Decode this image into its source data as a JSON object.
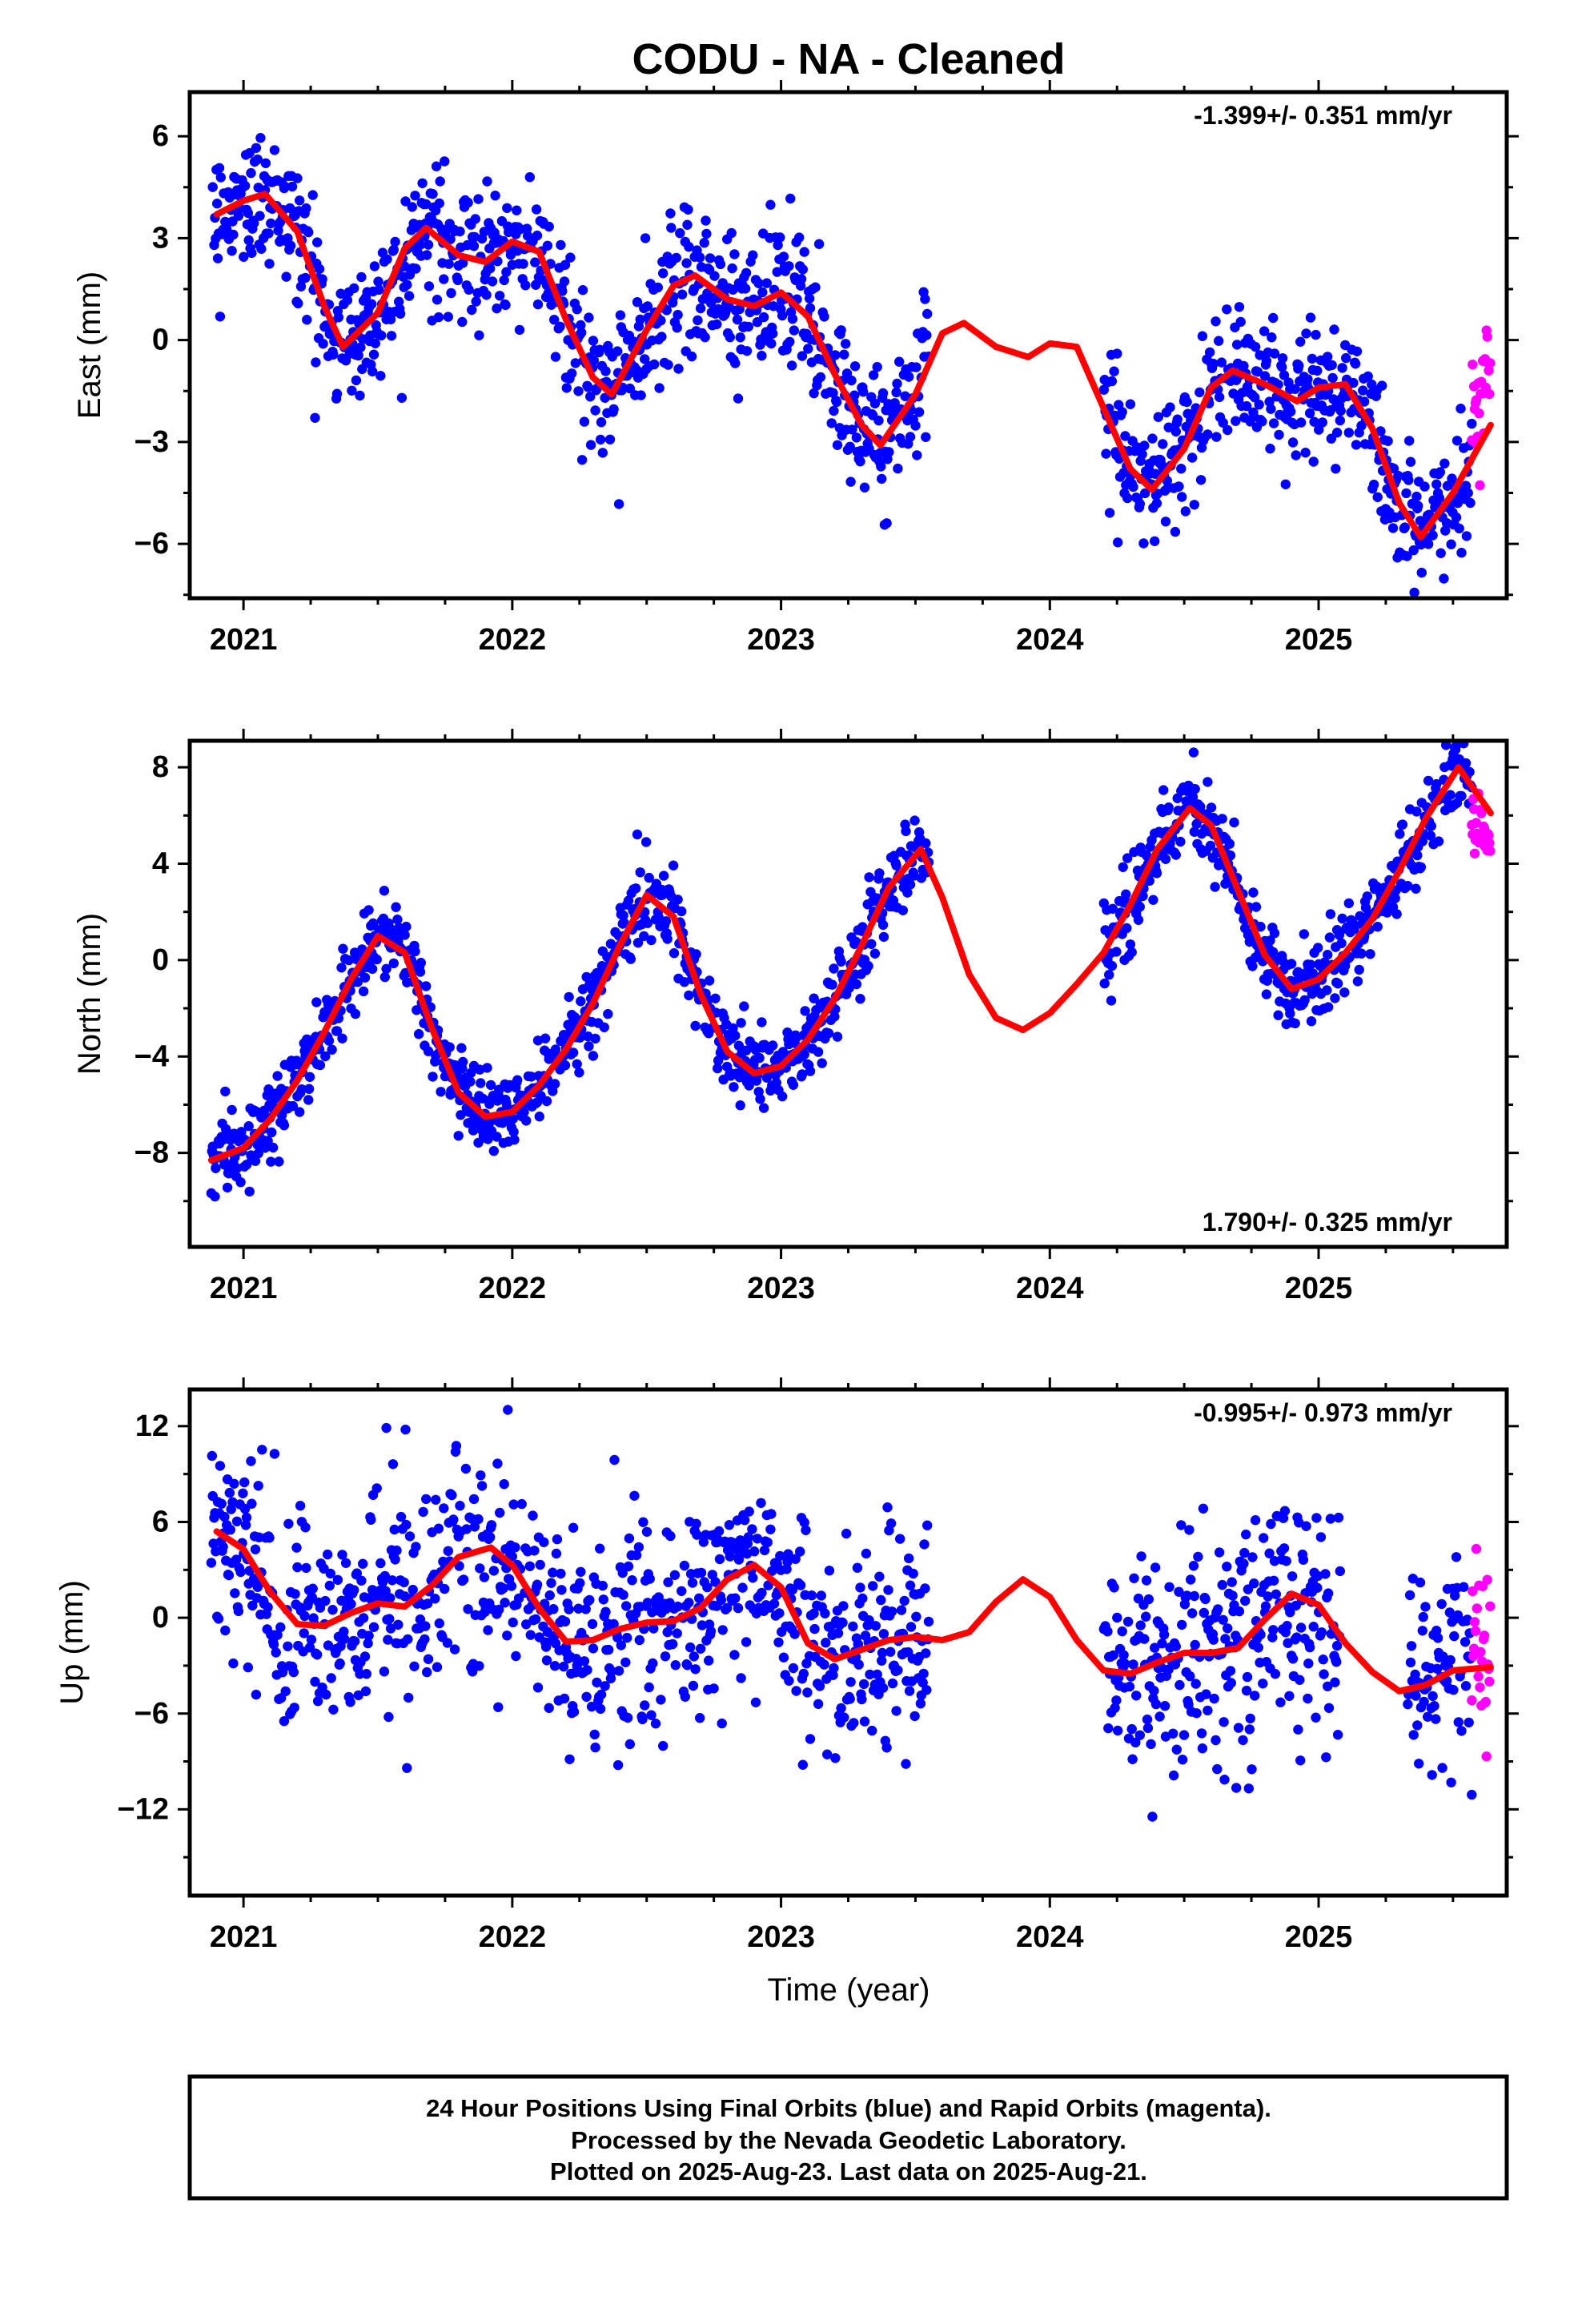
{
  "title": "CODU  - NA - Cleaned",
  "xlabel": "Time (year)",
  "footer": {
    "line1": "24 Hour Positions Using Final Orbits (blue) and Rapid Orbits (magenta).",
    "line2": "Processed by the Nevada Geodetic Laboratory.",
    "line3": "Plotted on 2025-Aug-23. Last data on 2025-Aug-21."
  },
  "colors": {
    "final": "#0000ff",
    "rapid": "#ff00ff",
    "fit": "#ff0000"
  },
  "chart_data": [
    {
      "type": "scatter",
      "panel": "east",
      "ylabel": "East (mm)",
      "rate_label": "-1.399+/- 0.351 mm/yr",
      "rate_position": "top-right",
      "xlim": [
        2020.8,
        2025.7
      ],
      "ylim": [
        -7.6,
        7.3
      ],
      "yticks": [
        -6,
        -3,
        0,
        3,
        6
      ],
      "xticks": [
        2021,
        2022,
        2023,
        2024,
        2025
      ],
      "gaps": [
        [
          2023.55,
          2024.2
        ]
      ],
      "final_end": 2025.57,
      "rapid_range": [
        2025.57,
        2025.64
      ],
      "fit_curve": {
        "x": [
          2020.9,
          2021.0,
          2021.08,
          2021.2,
          2021.3,
          2021.37,
          2021.5,
          2021.6,
          2021.68,
          2021.8,
          2021.9,
          2022.0,
          2022.1,
          2022.2,
          2022.3,
          2022.37,
          2022.5,
          2022.6,
          2022.68,
          2022.8,
          2022.9,
          2023.0,
          2023.1,
          2023.2,
          2023.3,
          2023.37,
          2023.5,
          2023.6,
          2023.68,
          2023.8,
          2023.92,
          2024.0,
          2024.1,
          2024.2,
          2024.3,
          2024.38,
          2024.5,
          2024.6,
          2024.68,
          2024.8,
          2024.92,
          2025.0,
          2025.1,
          2025.2,
          2025.3,
          2025.38,
          2025.5,
          2025.64
        ],
        "y": [
          3.7,
          4.1,
          4.3,
          3.2,
          1.0,
          -0.2,
          0.8,
          2.7,
          3.3,
          2.5,
          2.3,
          2.9,
          2.6,
          0.6,
          -1.1,
          -1.6,
          0.3,
          1.6,
          1.9,
          1.2,
          1.0,
          1.4,
          0.7,
          -1.0,
          -2.5,
          -3.1,
          -1.6,
          0.2,
          0.5,
          -0.2,
          -0.5,
          -0.1,
          -0.2,
          -2.0,
          -3.8,
          -4.4,
          -3.2,
          -1.4,
          -0.9,
          -1.3,
          -1.8,
          -1.4,
          -1.3,
          -2.6,
          -4.8,
          -5.8,
          -4.5,
          -2.5
        ]
      }
    },
    {
      "type": "scatter",
      "panel": "north",
      "ylabel": "North (mm)",
      "rate_label": "1.790+/- 0.325 mm/yr",
      "rate_position": "bottom-right",
      "xlim": [
        2020.8,
        2025.7
      ],
      "ylim": [
        -11.9,
        9.1
      ],
      "yticks": [
        -8,
        -4,
        0,
        4,
        8
      ],
      "xticks": [
        2021,
        2022,
        2023,
        2024,
        2025
      ],
      "gaps": [
        [
          2023.55,
          2024.2
        ]
      ],
      "final_end": 2025.57,
      "rapid_range": [
        2025.57,
        2025.64
      ],
      "fit_curve": {
        "x": [
          2020.88,
          2021.0,
          2021.1,
          2021.2,
          2021.3,
          2021.4,
          2021.5,
          2021.6,
          2021.7,
          2021.8,
          2021.9,
          2022.0,
          2022.1,
          2022.2,
          2022.3,
          2022.4,
          2022.5,
          2022.6,
          2022.7,
          2022.8,
          2022.9,
          2023.0,
          2023.1,
          2023.2,
          2023.3,
          2023.4,
          2023.52,
          2023.6,
          2023.7,
          2023.8,
          2023.9,
          2024.0,
          2024.1,
          2024.2,
          2024.3,
          2024.4,
          2024.52,
          2024.6,
          2024.7,
          2024.8,
          2024.9,
          2025.0,
          2025.1,
          2025.2,
          2025.3,
          2025.4,
          2025.52,
          2025.64
        ],
        "y": [
          -8.3,
          -7.8,
          -6.6,
          -5.0,
          -3.0,
          -0.8,
          1.0,
          0.3,
          -2.8,
          -5.5,
          -6.5,
          -6.3,
          -5.2,
          -3.7,
          -1.8,
          0.6,
          2.7,
          1.8,
          -1.4,
          -3.8,
          -4.7,
          -4.4,
          -3.3,
          -1.6,
          0.6,
          3.0,
          4.6,
          2.6,
          -0.6,
          -2.4,
          -2.9,
          -2.2,
          -1.0,
          0.3,
          2.3,
          4.6,
          6.3,
          5.6,
          2.9,
          0.2,
          -1.2,
          -0.8,
          0.3,
          1.7,
          3.7,
          5.9,
          8.0,
          6.1
        ]
      }
    },
    {
      "type": "scatter",
      "panel": "up",
      "ylabel": "Up (mm)",
      "rate_label": "-0.995+/- 0.973 mm/yr",
      "rate_position": "top-right",
      "xlim": [
        2020.8,
        2025.7
      ],
      "ylim": [
        -17.4,
        14.3
      ],
      "yticks": [
        -12,
        -6,
        0,
        6,
        12
      ],
      "xticks": [
        2021,
        2022,
        2023,
        2024,
        2025
      ],
      "gaps": [
        [
          2023.55,
          2024.2
        ],
        [
          2025.08,
          2025.33
        ]
      ],
      "final_end": 2025.57,
      "rapid_range": [
        2025.57,
        2025.64
      ],
      "fit_curve": {
        "x": [
          2020.9,
          2021.0,
          2021.1,
          2021.2,
          2021.3,
          2021.4,
          2021.5,
          2021.6,
          2021.7,
          2021.8,
          2021.92,
          2022.0,
          2022.1,
          2022.2,
          2022.3,
          2022.4,
          2022.5,
          2022.6,
          2022.7,
          2022.8,
          2022.9,
          2023.0,
          2023.1,
          2023.2,
          2023.3,
          2023.4,
          2023.5,
          2023.6,
          2023.7,
          2023.8,
          2023.9,
          2024.0,
          2024.1,
          2024.2,
          2024.3,
          2024.4,
          2024.5,
          2024.6,
          2024.7,
          2024.8,
          2024.9,
          2025.0,
          2025.1,
          2025.2,
          2025.3,
          2025.4,
          2025.5,
          2025.64
        ],
        "y": [
          5.4,
          4.3,
          1.6,
          -0.4,
          -0.5,
          0.3,
          0.9,
          0.7,
          2.0,
          3.8,
          4.4,
          3.3,
          0.6,
          -1.5,
          -1.4,
          -0.7,
          -0.3,
          -0.2,
          0.6,
          2.4,
          3.3,
          1.9,
          -1.6,
          -2.6,
          -2.0,
          -1.4,
          -1.2,
          -1.4,
          -0.9,
          1.0,
          2.4,
          1.3,
          -1.4,
          -3.3,
          -3.5,
          -2.8,
          -2.2,
          -2.2,
          -1.9,
          -0.1,
          1.5,
          0.8,
          -1.6,
          -3.4,
          -4.6,
          -4.2,
          -3.3,
          -3.1
        ]
      }
    }
  ]
}
